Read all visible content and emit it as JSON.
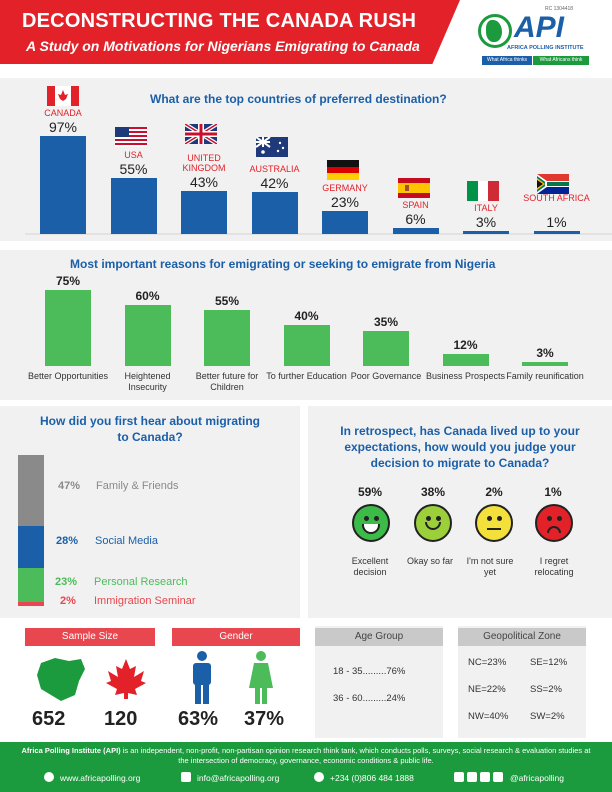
{
  "header": {
    "title": "DECONSTRUCTING THE CANADA RUSH",
    "subtitle": "A Study on Motivations for Nigerians Emigrating to Canada",
    "rc": "RC 1304418",
    "logo_text": "API",
    "logo_sub": "AFRICA POLLING INSTITUTE",
    "tag_left": "What Africa thinks",
    "tag_right": "What Africans think"
  },
  "destinations": {
    "question": "What are the top countries of preferred destination?",
    "items": [
      {
        "country": "CANADA",
        "value": 97,
        "label": "97%"
      },
      {
        "country": "USA",
        "value": 55,
        "label": "55%"
      },
      {
        "country": "UNITED KINGDOM",
        "value": 43,
        "label": "43%"
      },
      {
        "country": "AUSTRALIA",
        "value": 42,
        "label": "42%"
      },
      {
        "country": "GERMANY",
        "value": 23,
        "label": "23%"
      },
      {
        "country": "SPAIN",
        "value": 6,
        "label": "6%"
      },
      {
        "country": "ITALY",
        "value": 3,
        "label": "3%"
      },
      {
        "country": "SOUTH AFRICA",
        "value": 1,
        "label": "1%"
      }
    ]
  },
  "reasons": {
    "question": "Most important reasons for emigrating or seeking to emigrate from Nigeria",
    "items": [
      {
        "label": "Better Opportunities",
        "value": 75,
        "pct": "75%"
      },
      {
        "label": "Heightened Insecurity",
        "value": 60,
        "pct": "60%"
      },
      {
        "label": "Better future for Children",
        "value": 55,
        "pct": "55%"
      },
      {
        "label": "To further Education",
        "value": 40,
        "pct": "40%"
      },
      {
        "label": "Poor Governance",
        "value": 35,
        "pct": "35%"
      },
      {
        "label": "Business Prospects",
        "value": 12,
        "pct": "12%"
      },
      {
        "label": "Family reunification",
        "value": 3,
        "pct": "3%"
      }
    ]
  },
  "heard": {
    "question": "How did you first hear about migrating to Canada?",
    "items": [
      {
        "pct": "47%",
        "label": "Family & Friends",
        "color": "#8a8a8a"
      },
      {
        "pct": "28%",
        "label": "Social Media",
        "color": "#1b5fa8"
      },
      {
        "pct": "23%",
        "label": "Personal Research",
        "color": "#4cbc5a"
      },
      {
        "pct": "2%",
        "label": "Immigration Seminar",
        "color": "#e8474f"
      }
    ]
  },
  "expectations": {
    "question": "In retrospect, has Canada lived up to your expectations, how would you judge your decision to migrate to Canada?",
    "items": [
      {
        "pct": "59%",
        "label": "Excellent decision",
        "color": "#3dbb48"
      },
      {
        "pct": "38%",
        "label": "Okay so far",
        "color": "#9bd03b"
      },
      {
        "pct": "2%",
        "label": "I'm not sure yet",
        "color": "#f3e03a"
      },
      {
        "pct": "1%",
        "label": "I regret relocating",
        "color": "#e32129"
      }
    ]
  },
  "sample": {
    "title": "Sample Size",
    "nigeria": "652",
    "canada": "120"
  },
  "gender": {
    "title": "Gender",
    "male": "63%",
    "female": "37%"
  },
  "age": {
    "title": "Age Group",
    "row1": "18 - 35.........76%",
    "row2": "36 - 60.........24%"
  },
  "geo": {
    "title": "Geopolitical Zone",
    "nc": "NC=23%",
    "se": "SE=12%",
    "ne": "NE=22%",
    "ss": "SS=2%",
    "nw": "NW=40%",
    "sw": "SW=2%"
  },
  "footer": {
    "about_bold": "Africa Polling Institute (API)",
    "about": " is an independent, non-profit, non-partisan opinion research think tank, which conducts polls, surveys, social research & evaluation studies at the intersection of democracy, governance, economic conditions & public life.",
    "web": "www.africapolling.org",
    "email": "info@africapolling.org",
    "phone": "+234 (0)806 484 1888",
    "social": "@africapolling"
  }
}
